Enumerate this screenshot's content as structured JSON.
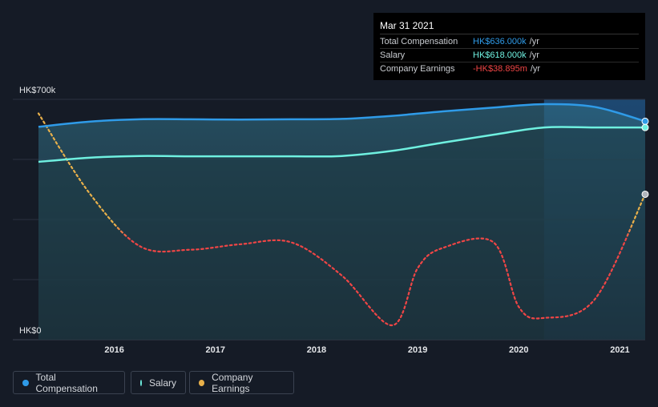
{
  "tooltip": {
    "date": "Mar 31 2021",
    "rows": [
      {
        "label": "Total Compensation",
        "value": "HK$636.000k",
        "unit": "/yr",
        "color": "#2f9be8"
      },
      {
        "label": "Salary",
        "value": "HK$618.000k",
        "unit": "/yr",
        "color": "#6ff0e0"
      },
      {
        "label": "Company Earnings",
        "value": "-HK$38.895m",
        "unit": "/yr",
        "color": "#f04545"
      }
    ]
  },
  "legend": [
    {
      "label": "Total Compensation",
      "color": "#2f9be8"
    },
    {
      "label": "Salary",
      "color": "#6ff0e0"
    },
    {
      "label": "Company Earnings",
      "color": "#e8b04a"
    }
  ],
  "chart_data": {
    "type": "line",
    "title": "",
    "xlabel": "",
    "ylabel": "",
    "y_tick_labels": [
      "HK$700k",
      "HK$0"
    ],
    "ylim": [
      0,
      700
    ],
    "xlim": [
      2015.25,
      2021.25
    ],
    "x_ticks": [
      2016,
      2017,
      2018,
      2019,
      2020,
      2021
    ],
    "x_tick_labels": [
      "2016",
      "2017",
      "2018",
      "2019",
      "2020",
      "2021"
    ],
    "grid": true,
    "legend_position": "bottom-left",
    "series": [
      {
        "name": "Total Compensation",
        "color": "#2f9be8",
        "unit": "HK$k",
        "x": [
          2015.25,
          2015.75,
          2016.25,
          2016.75,
          2017.25,
          2017.75,
          2018.25,
          2018.75,
          2019.25,
          2019.75,
          2020.25,
          2020.75,
          2021.25
        ],
        "values": [
          620,
          635,
          642,
          642,
          641,
          642,
          643,
          652,
          665,
          676,
          686,
          678,
          636
        ]
      },
      {
        "name": "Salary",
        "color": "#6ff0e0",
        "unit": "HK$k",
        "x": [
          2015.25,
          2015.75,
          2016.25,
          2016.75,
          2017.25,
          2017.75,
          2018.25,
          2018.75,
          2019.25,
          2019.75,
          2020.25,
          2020.75,
          2021.25
        ],
        "values": [
          518,
          530,
          535,
          534,
          534,
          534,
          535,
          550,
          574,
          597,
          618,
          618,
          618
        ]
      },
      {
        "name": "Company Earnings",
        "colors": {
          "positive": "#e8b04a",
          "negative": "#f04545"
        },
        "unit": "HK$m",
        "zero_value": -110,
        "scale_max": 10,
        "x": [
          2015.25,
          2015.75,
          2016.25,
          2016.75,
          2017.25,
          2017.75,
          2018.25,
          2018.75,
          2019.0,
          2019.25,
          2019.75,
          2020.0,
          2020.25,
          2020.75,
          2021.25
        ],
        "values": [
          5,
          -38,
          -67,
          -69,
          -66,
          -65,
          -83,
          -110,
          -79,
          -68,
          -65,
          -100,
          -106,
          -96,
          -38.895
        ]
      }
    ]
  }
}
